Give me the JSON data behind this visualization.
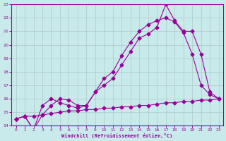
{
  "xlabel": "Windchill (Refroidissement éolien,°C)",
  "bg_color": "#c8eaea",
  "line_color": "#990099",
  "grid_color": "#b0c8c8",
  "xlim": [
    -0.5,
    23.5
  ],
  "ylim": [
    14,
    23
  ],
  "xticks": [
    0,
    1,
    2,
    3,
    4,
    5,
    6,
    7,
    8,
    9,
    10,
    11,
    12,
    13,
    14,
    15,
    16,
    17,
    18,
    19,
    20,
    21,
    22,
    23
  ],
  "yticks": [
    14,
    15,
    16,
    17,
    18,
    19,
    20,
    21,
    22,
    23
  ],
  "line1_x": [
    0,
    1,
    2,
    3,
    4,
    5,
    6,
    7,
    8,
    9,
    10,
    11,
    12,
    13,
    14,
    15,
    16,
    17,
    18,
    19,
    20,
    21,
    22,
    23
  ],
  "line1_y": [
    14.5,
    14.7,
    14.7,
    14.8,
    14.9,
    15.0,
    15.1,
    15.1,
    15.2,
    15.2,
    15.3,
    15.3,
    15.4,
    15.4,
    15.5,
    15.5,
    15.6,
    15.7,
    15.7,
    15.8,
    15.8,
    15.9,
    15.9,
    16.0
  ],
  "line2_x": [
    0,
    1,
    2,
    3,
    4,
    5,
    6,
    7,
    8,
    9,
    10,
    11,
    12,
    13,
    14,
    15,
    16,
    17,
    18,
    19,
    20,
    21,
    22,
    23
  ],
  "line2_y": [
    14.5,
    14.7,
    13.7,
    15.5,
    16.0,
    15.7,
    15.5,
    15.3,
    15.5,
    16.5,
    17.5,
    18.0,
    19.2,
    20.2,
    21.0,
    21.5,
    21.8,
    22.0,
    21.7,
    20.9,
    19.3,
    17.0,
    16.3,
    16.0
  ],
  "line3_x": [
    0,
    1,
    2,
    3,
    4,
    5,
    6,
    7,
    8,
    9,
    10,
    11,
    12,
    13,
    14,
    15,
    16,
    17,
    18,
    19,
    20,
    21,
    22,
    23
  ],
  "line3_y": [
    14.5,
    14.7,
    13.7,
    14.8,
    15.5,
    16.0,
    15.9,
    15.5,
    15.5,
    16.5,
    17.0,
    17.5,
    18.5,
    19.5,
    20.5,
    20.8,
    21.3,
    23.0,
    21.8,
    21.0,
    21.0,
    19.3,
    16.5,
    16.0
  ]
}
